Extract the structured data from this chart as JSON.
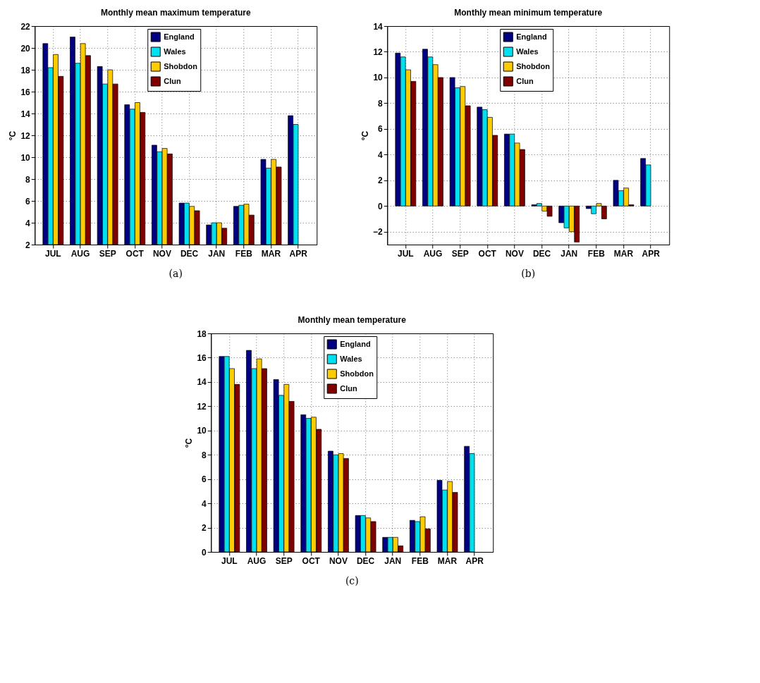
{
  "chart_data": [
    {
      "type": "bar",
      "title": "Monthly mean maximum temperature",
      "ylabel": "°C",
      "categories": [
        "JUL",
        "AUG",
        "SEP",
        "OCT",
        "NOV",
        "DEC",
        "JAN",
        "FEB",
        "MAR",
        "APR"
      ],
      "ylim": [
        2,
        22
      ],
      "yticks": [
        2,
        4,
        6,
        8,
        10,
        12,
        14,
        16,
        18,
        20,
        22
      ],
      "grid": true,
      "legend": "top",
      "annotations": [
        "(a)"
      ],
      "series": [
        {
          "name": "England",
          "color": "#000080",
          "values": [
            20.4,
            21.0,
            18.3,
            14.8,
            11.1,
            5.8,
            3.8,
            5.5,
            9.8,
            13.8
          ]
        },
        {
          "name": "Wales",
          "color": "#00e0f0",
          "values": [
            18.2,
            18.6,
            16.7,
            14.4,
            10.5,
            5.8,
            4.0,
            5.6,
            9.0,
            13.0
          ]
        },
        {
          "name": "Shobdon",
          "color": "#ffcc00",
          "values": [
            19.4,
            20.4,
            18.0,
            15.0,
            10.8,
            5.5,
            4.0,
            5.7,
            9.8,
            null
          ]
        },
        {
          "name": "Clun",
          "color": "#800000",
          "values": [
            17.4,
            19.3,
            16.7,
            14.1,
            10.3,
            5.1,
            3.5,
            4.7,
            9.1,
            null
          ]
        }
      ]
    },
    {
      "type": "bar",
      "title": "Monthly mean minimum temperature",
      "ylabel": "°C",
      "categories": [
        "JUL",
        "AUG",
        "SEP",
        "OCT",
        "NOV",
        "DEC",
        "JAN",
        "FEB",
        "MAR",
        "APR"
      ],
      "ylim": [
        -3,
        14
      ],
      "yticks": [
        -2,
        0,
        2,
        4,
        6,
        8,
        10,
        12,
        14
      ],
      "grid": true,
      "legend": "top",
      "annotations": [
        "(b)"
      ],
      "series": [
        {
          "name": "England",
          "color": "#000080",
          "values": [
            11.9,
            12.2,
            10.0,
            7.7,
            5.6,
            0.1,
            -1.3,
            -0.2,
            2.0,
            3.7
          ]
        },
        {
          "name": "Wales",
          "color": "#00e0f0",
          "values": [
            11.6,
            11.6,
            9.2,
            7.5,
            5.6,
            0.2,
            -1.7,
            -0.6,
            1.2,
            3.2
          ]
        },
        {
          "name": "Shobdon",
          "color": "#ffcc00",
          "values": [
            10.6,
            11.0,
            9.3,
            6.9,
            4.9,
            -0.4,
            -2.0,
            0.2,
            1.4,
            null
          ]
        },
        {
          "name": "Clun",
          "color": "#800000",
          "values": [
            9.7,
            10.0,
            7.8,
            5.5,
            4.4,
            -0.8,
            -2.8,
            -1.0,
            0.1,
            null
          ]
        }
      ]
    },
    {
      "type": "bar",
      "title": "Monthly mean temperature",
      "ylabel": "°C",
      "categories": [
        "JUL",
        "AUG",
        "SEP",
        "OCT",
        "NOV",
        "DEC",
        "JAN",
        "FEB",
        "MAR",
        "APR"
      ],
      "ylim": [
        0,
        18
      ],
      "yticks": [
        0,
        2,
        4,
        6,
        8,
        10,
        12,
        14,
        16,
        18
      ],
      "grid": true,
      "legend": "top",
      "annotations": [
        "(c)"
      ],
      "series": [
        {
          "name": "England",
          "color": "#000080",
          "values": [
            16.1,
            16.6,
            14.2,
            11.3,
            8.3,
            3.0,
            1.2,
            2.6,
            5.9,
            8.7
          ]
        },
        {
          "name": "Wales",
          "color": "#00e0f0",
          "values": [
            16.1,
            15.1,
            12.9,
            11.0,
            8.0,
            3.0,
            1.2,
            2.5,
            5.1,
            8.1
          ]
        },
        {
          "name": "Shobdon",
          "color": "#ffcc00",
          "values": [
            15.1,
            15.9,
            13.8,
            11.1,
            8.1,
            2.8,
            1.2,
            2.9,
            5.8,
            null
          ]
        },
        {
          "name": "Clun",
          "color": "#800000",
          "values": [
            13.8,
            15.1,
            12.4,
            10.1,
            7.7,
            2.5,
            0.5,
            1.9,
            4.9,
            null
          ]
        }
      ]
    }
  ]
}
